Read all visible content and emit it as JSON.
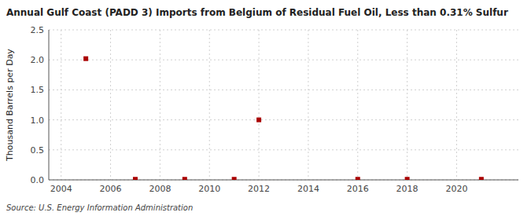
{
  "chart_data": {
    "type": "scatter",
    "title": "Annual Gulf Coast (PADD 3) Imports from Belgium of Residual Fuel Oil, Less than 0.31% Sulfur",
    "ylabel": "Thousand Barrels per Day",
    "source": "Source: U.S. Energy Information Administration",
    "x": [
      2005,
      2007,
      2009,
      2011,
      2012,
      2016,
      2018,
      2021
    ],
    "values": [
      2.02,
      0.01,
      0.01,
      0.01,
      1.0,
      0.01,
      0.01,
      0.01
    ],
    "color": "#aa0000",
    "marker": "square",
    "xlim": [
      2003.5,
      2022.5
    ],
    "ylim": [
      0.0,
      2.5
    ],
    "xticks": [
      2004,
      2006,
      2008,
      2010,
      2012,
      2014,
      2016,
      2018,
      2020
    ],
    "yticks": [
      {
        "value": 0.0,
        "label": "0.0"
      },
      0.5,
      {
        "value": 1.0,
        "label": "1.0"
      },
      1.5,
      {
        "value": 2.0,
        "label": "2.0"
      },
      2.5
    ],
    "grid": true
  }
}
